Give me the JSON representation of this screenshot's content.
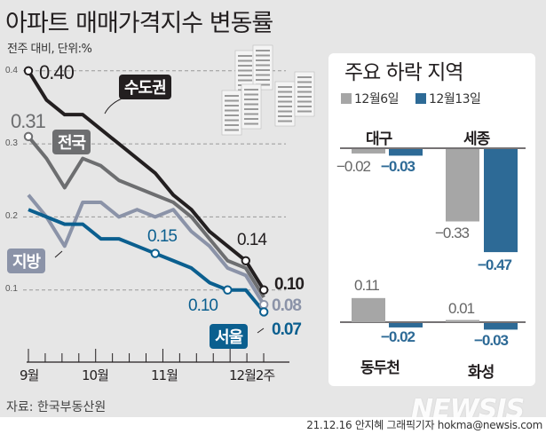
{
  "title": "아파트 매매가격지수 변동률",
  "subtitle": "전주 대비, 단위:%",
  "source": "자료: 한국부동산원",
  "credit": "21.12.16 안지혜 그래픽기자 hokma@newsis.com",
  "logo": "NEWSIS",
  "colors": {
    "background": "#e6e6e6",
    "capital": "#231f20",
    "national": "#6d6e70",
    "provinces": "#8b93a8",
    "seoul": "#0b5f8f",
    "bar_prev": "#a6a6a6",
    "bar_curr": "#2d6a96"
  },
  "chart_data": [
    {
      "type": "line",
      "ylim": [
        0.05,
        0.42
      ],
      "yticks": [
        "0.4",
        "0.3",
        "0.2",
        "0.1"
      ],
      "ytick_values": [
        0.4,
        0.3,
        0.2,
        0.1
      ],
      "grid": true,
      "xtick_labels": [
        "9월",
        "10월",
        "11월",
        "12월2주"
      ],
      "series": [
        {
          "name": "수도권",
          "color": "#231f20",
          "values": [
            0.4,
            0.36,
            0.34,
            0.34,
            0.32,
            0.3,
            0.28,
            0.26,
            0.23,
            0.21,
            0.18,
            0.16,
            0.14,
            0.1
          ],
          "labels": [
            "0.40",
            "0.14",
            "0.10"
          ]
        },
        {
          "name": "전국",
          "color": "#6d6e70",
          "values": [
            0.31,
            0.28,
            0.24,
            0.28,
            0.27,
            0.25,
            0.24,
            0.23,
            0.22,
            0.2,
            0.17,
            0.14,
            0.13,
            0.09
          ],
          "labels": [
            "0.31"
          ]
        },
        {
          "name": "지방",
          "color": "#8b93a8",
          "values": [
            0.23,
            0.2,
            0.16,
            0.22,
            0.22,
            0.2,
            0.21,
            0.2,
            0.21,
            0.18,
            0.16,
            0.13,
            0.12,
            0.08
          ],
          "labels": [
            "0.08"
          ]
        },
        {
          "name": "서울",
          "color": "#0b5f8f",
          "values": [
            0.21,
            0.2,
            0.19,
            0.19,
            0.17,
            0.17,
            0.16,
            0.15,
            0.14,
            0.13,
            0.11,
            0.1,
            0.1,
            0.07
          ],
          "labels": [
            "0.15",
            "0.10",
            "0.07"
          ]
        }
      ]
    },
    {
      "type": "bar",
      "title": "주요 하락 지역",
      "legend": [
        "12월6일",
        "12월13일"
      ],
      "categories": [
        "대구",
        "세종",
        "동두천",
        "화성"
      ],
      "series": [
        {
          "name": "12월6일",
          "values": [
            -0.02,
            -0.33,
            0.11,
            0.01
          ],
          "labels": [
            "−0.02",
            "−0.33",
            "0.11",
            "0.01"
          ]
        },
        {
          "name": "12월13일",
          "values": [
            -0.03,
            -0.47,
            -0.02,
            -0.03
          ],
          "labels": [
            "−0.03",
            "−0.47",
            "−0.02",
            "−0.03"
          ]
        }
      ]
    }
  ]
}
